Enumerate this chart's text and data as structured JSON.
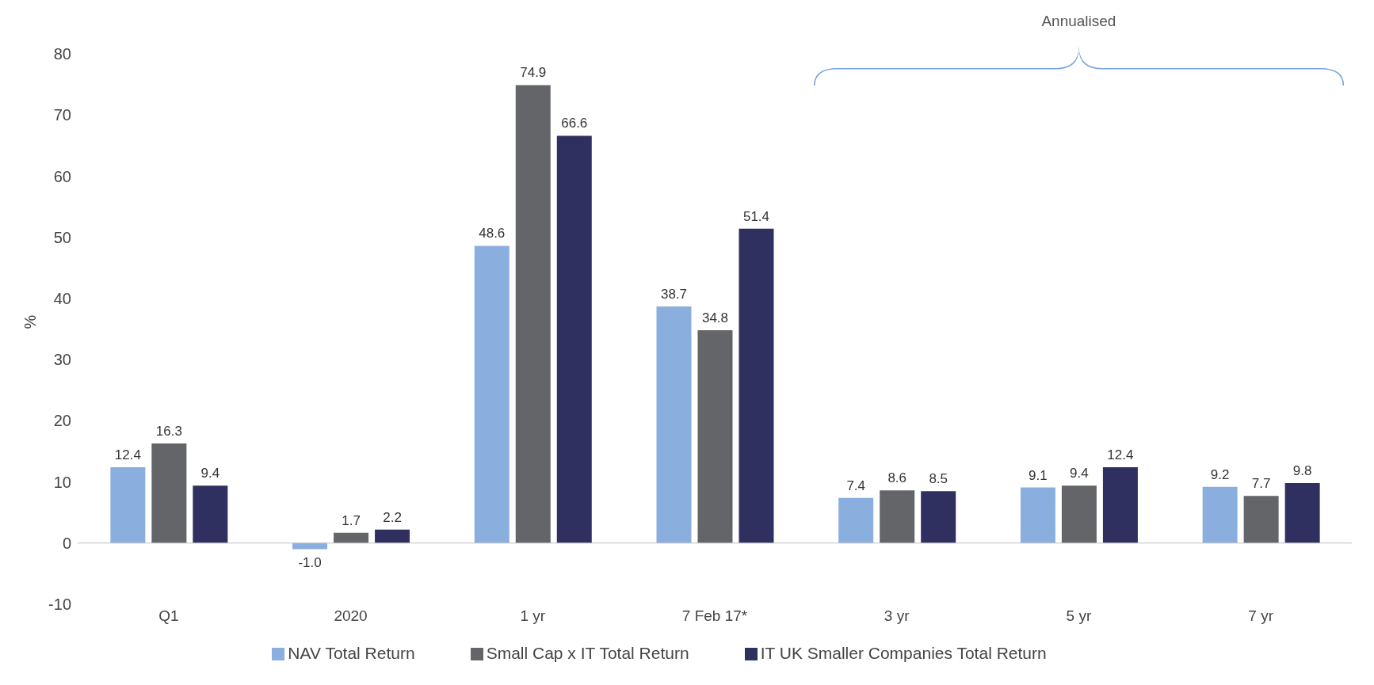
{
  "chart_data": {
    "type": "bar",
    "ylabel": "%",
    "categories": [
      "Q1",
      "2020",
      "1 yr",
      "7 Feb 17*",
      "3 yr",
      "5 yr",
      "7 yr"
    ],
    "series": [
      {
        "name": "NAV Total Return",
        "color": "#8aafdf",
        "values": [
          12.4,
          -1.0,
          48.6,
          38.7,
          7.4,
          9.1,
          9.2
        ],
        "value_labels": [
          "12.4",
          "-1.0",
          "48.6",
          "38.7",
          "7.4",
          "9.1",
          "9.2"
        ]
      },
      {
        "name": "Small Cap x IT Total Return",
        "color": "#636569",
        "values": [
          16.3,
          1.7,
          74.9,
          34.8,
          8.6,
          9.4,
          7.7
        ],
        "value_labels": [
          "16.3",
          "1.7",
          "74.9",
          "34.8",
          "8.6",
          "9.4",
          "7.7"
        ]
      },
      {
        "name": "IT UK Smaller Companies Total Return",
        "color": "#303060",
        "values": [
          9.4,
          2.2,
          66.6,
          51.4,
          8.5,
          12.4,
          9.8
        ],
        "value_labels": [
          "9.4",
          "2.2",
          "66.6",
          "51.4",
          "8.5",
          "12.4",
          "9.8"
        ]
      }
    ],
    "ref_lines": [
      {
        "axis": "y",
        "value": 0,
        "color": "#bfbfbf"
      }
    ],
    "ylim": [
      -10,
      80
    ],
    "yticks": [
      -10,
      0,
      10,
      20,
      30,
      40,
      50,
      60,
      70,
      80
    ],
    "legend": "bottom",
    "annotations": [
      "Annualised"
    ]
  }
}
